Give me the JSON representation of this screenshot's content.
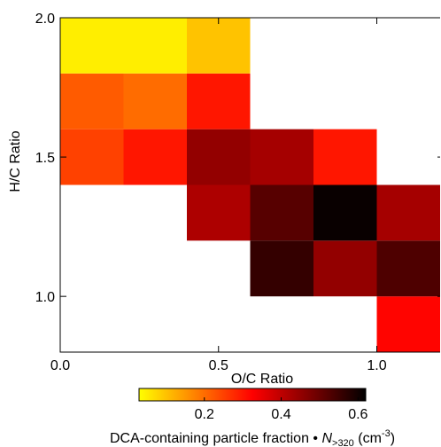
{
  "chart_data": {
    "type": "heatmap",
    "xlabel": "O/C Ratio",
    "ylabel": "H/C Ratio",
    "xbins": [
      0,
      0.2,
      0.4,
      0.6,
      0.8,
      1.0,
      1.2
    ],
    "ybins": [
      0.8,
      1.0,
      1.2,
      1.4,
      1.6,
      1.8,
      2.0
    ],
    "z": [
      [
        null,
        null,
        null,
        null,
        null,
        0.32
      ],
      [
        null,
        null,
        null,
        0.56,
        0.45,
        0.53
      ],
      [
        null,
        null,
        0.42,
        0.52,
        0.61,
        0.43
      ],
      [
        0.25,
        0.3,
        0.45,
        0.43,
        0.3,
        null
      ],
      [
        0.22,
        0.2,
        0.3,
        null,
        null,
        null
      ],
      [
        0.05,
        0.05,
        0.1,
        null,
        null,
        null
      ]
    ],
    "xlim": [
      0,
      1.2
    ],
    "ylim": [
      0.8,
      2.0
    ],
    "xticks": [
      {
        "value": 0,
        "label": "0.0"
      },
      {
        "value": 0.5,
        "label": "0.5"
      },
      {
        "value": 1.0,
        "label": "1.0"
      }
    ],
    "yticks": [
      {
        "value": 1.0,
        "label": "1.0"
      },
      {
        "value": 1.5,
        "label": "1.5"
      },
      {
        "value": 2.0,
        "label": "2.0"
      }
    ],
    "colormap": [
      "#ffff00",
      "#ff8000",
      "#ff0000",
      "#800000",
      "#000000"
    ],
    "clim": [
      0.03,
      0.62
    ],
    "cticks": [
      0.2,
      0.4,
      0.6
    ],
    "colorbar_label": {
      "text": "DCA-containing particle fraction • ",
      "var": "N",
      "sub": ">320",
      "unit": " (cm",
      "sup": "-3",
      "end": ")"
    }
  }
}
